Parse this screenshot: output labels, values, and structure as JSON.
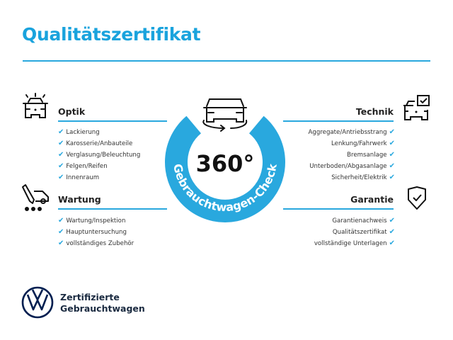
{
  "title": "Qualitätszertifikat",
  "colors": {
    "accent": "#29a8de",
    "brand": "#001e50"
  },
  "center": {
    "value": "360°",
    "arc_text": "Gebrauchtwagen-Check",
    "icon": "rotating-car-icon"
  },
  "sections": {
    "optik": {
      "heading": "Optik",
      "icon": "car-headlights-icon",
      "check_icon": "checkmark-icon",
      "items": [
        "Lackierung",
        "Karosserie/Anbauteile",
        "Verglasung/Beleuchtung",
        "Felgen/Reifen",
        "Innenraum"
      ]
    },
    "wartung": {
      "heading": "Wartung",
      "icon": "service-tools-icon",
      "items": [
        "Wartung/Inspektion",
        "Hauptuntersuchung",
        "vollständiges Zubehör"
      ]
    },
    "technik": {
      "heading": "Technik",
      "icon": "car-checklist-icon",
      "items": [
        "Aggregate/Antriebsstrang",
        "Lenkung/Fahrwerk",
        "Bremsanlage",
        "Unterboden/Abgasanlage",
        "Sicherheit/Elektrik"
      ]
    },
    "garantie": {
      "heading": "Garantie",
      "icon": "shield-check-icon",
      "items": [
        "Garantienachweis",
        "Qualitätszertifikat",
        "vollständige Unterlagen"
      ]
    }
  },
  "footer": {
    "line1": "Zertifizierte",
    "line2": "Gebrauchtwagen",
    "logo": "vw-logo"
  },
  "check": "✔"
}
